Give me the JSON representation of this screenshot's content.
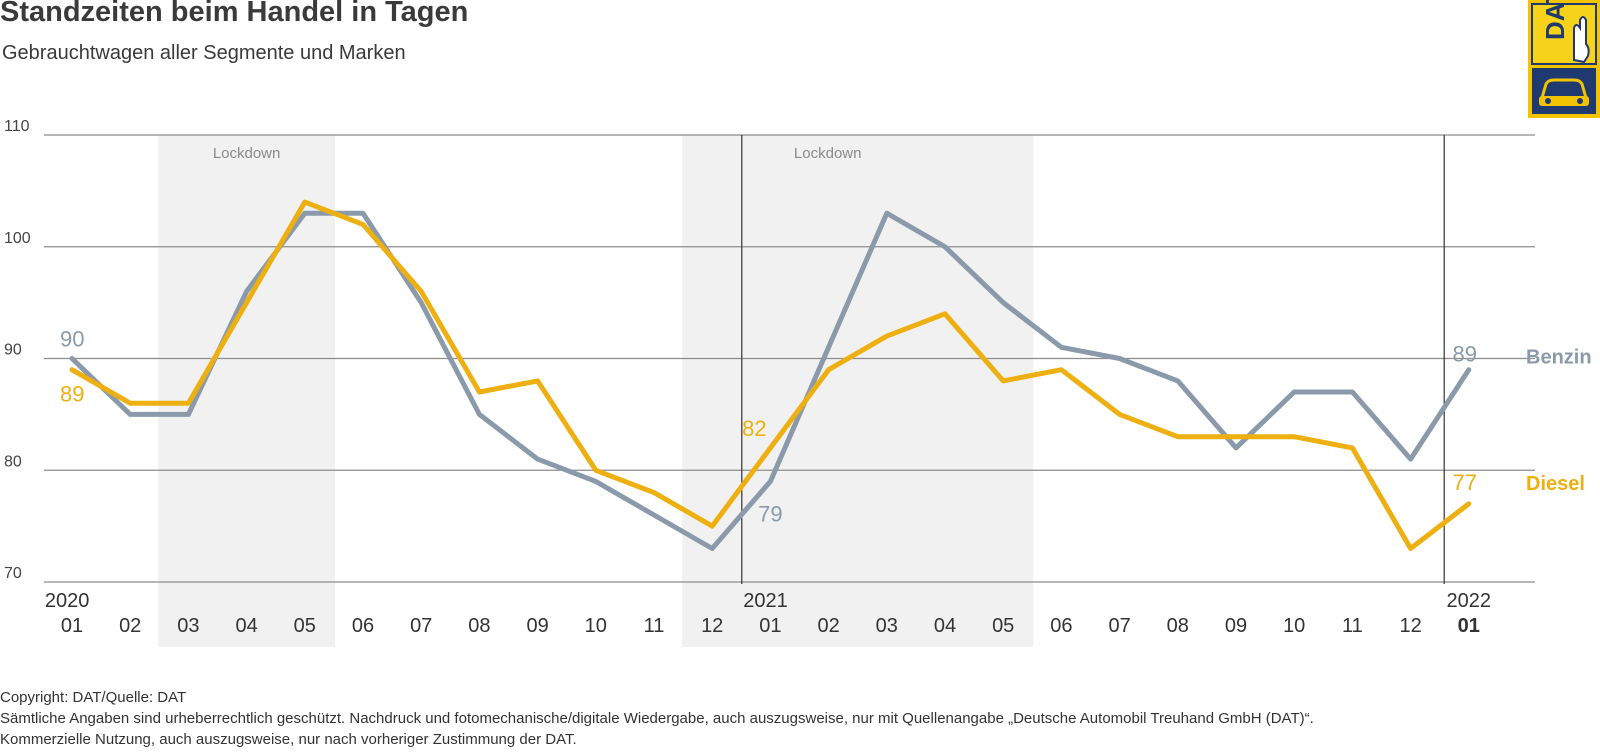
{
  "title": "Standzeiten beim Handel in Tagen",
  "subtitle": "Gebrauchtwagen aller Segmente und Marken",
  "logo": {
    "text": "DAT"
  },
  "colors": {
    "benzin": "#8a9aab",
    "diesel": "#eeb010",
    "shade": "#f1f1f1",
    "grid": "#8c8c8c"
  },
  "chart_data": {
    "type": "line",
    "categories": [
      "01",
      "02",
      "03",
      "04",
      "05",
      "06",
      "07",
      "08",
      "09",
      "10",
      "11",
      "12",
      "01",
      "02",
      "03",
      "04",
      "05",
      "06",
      "07",
      "08",
      "09",
      "10",
      "11",
      "12",
      "01"
    ],
    "year_labels": [
      {
        "index": 0,
        "label": "2020"
      },
      {
        "index": 12,
        "label": "2021"
      },
      {
        "index": 24,
        "label": "2022"
      }
    ],
    "ylim": [
      70,
      110
    ],
    "yticks": [
      70,
      80,
      90,
      100,
      110
    ],
    "shaded_ranges": [
      {
        "from": 2,
        "to": 4,
        "label": "Lockdown"
      },
      {
        "from": 11,
        "to": 16,
        "label": "Lockdown"
      }
    ],
    "series": [
      {
        "name": "Benzin",
        "values": [
          90,
          85,
          85,
          96,
          103,
          103,
          95,
          85,
          81,
          79,
          76,
          73,
          79,
          91,
          103,
          100,
          95,
          91,
          90,
          88,
          82,
          87,
          87,
          81,
          89
        ]
      },
      {
        "name": "Diesel",
        "values": [
          89,
          86,
          86,
          95,
          104,
          102,
          96,
          87,
          88,
          80,
          78,
          75,
          82,
          89,
          92,
          94,
          88,
          89,
          85,
          83,
          83,
          83,
          82,
          73,
          77
        ]
      }
    ],
    "data_labels": {
      "benzin": [
        {
          "index": 0,
          "text": "90"
        },
        {
          "index": 12,
          "text": "79"
        },
        {
          "index": 24,
          "text": "89"
        }
      ],
      "diesel": [
        {
          "index": 0,
          "text": "89"
        },
        {
          "index": 12,
          "text": "82"
        },
        {
          "index": 24,
          "text": "77"
        }
      ]
    }
  },
  "footer": {
    "line1": "Copyright: DAT/Quelle: DAT",
    "line2": "Sämtliche Angaben sind urheberrechtlich geschützt. Nachdruck und fotomechanische/digitale Wiedergabe, auch auszugsweise, nur mit Quellenangabe „Deutsche Automobil Treuhand GmbH (DAT)“.",
    "line3": "Kommerzielle Nutzung, auch auszugsweise, nur nach vorheriger Zustimmung der DAT."
  }
}
